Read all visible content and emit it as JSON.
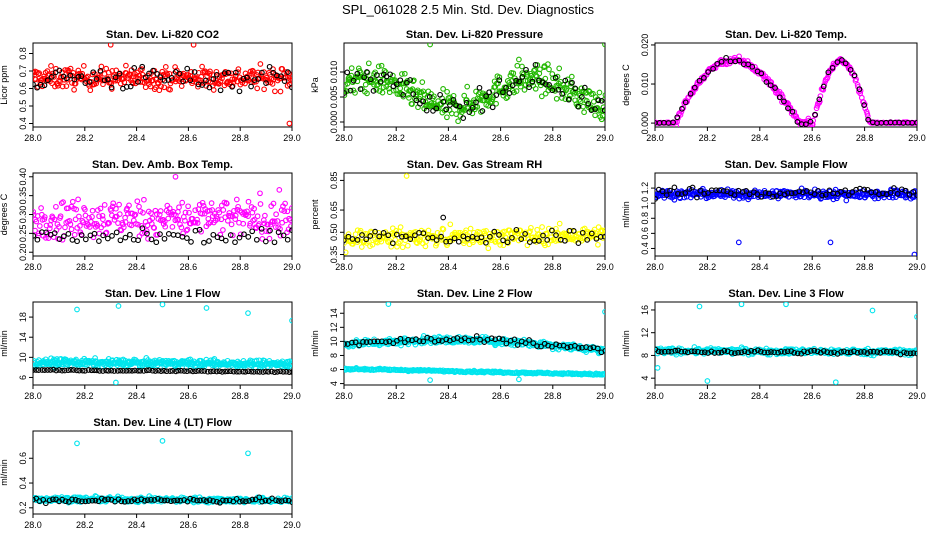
{
  "title": "SPL_061028  2.5 Min. Std. Dev. Diagnostics",
  "chart_data": [
    {
      "type": "scatter",
      "title": "Stan. Dev. Li-820 CO2",
      "ylabel": "Licor ppm",
      "xlim": [
        28.0,
        29.0
      ],
      "ylim": [
        0.38,
        0.86
      ],
      "xticks": [
        "28.0",
        "28.2",
        "28.4",
        "28.6",
        "28.8",
        "29.0"
      ],
      "yticks": [
        0.4,
        0.5,
        0.6,
        0.7,
        0.8
      ],
      "ytick_labels": [
        "0.4",
        "0.5",
        "0.6",
        "0.7",
        "0.8"
      ],
      "series": [
        {
          "name": "dense",
          "color": "#ff0000",
          "trend": [
            0.66,
            0.66
          ],
          "spread": 0.06,
          "n": 330
        },
        {
          "name": "black",
          "color": "#000000",
          "trend": [
            0.66,
            0.66
          ],
          "spread": 0.07,
          "n": 70
        }
      ],
      "outliers": [
        {
          "x": 28.62,
          "y": 0.85,
          "color": "#ff0000"
        },
        {
          "x": 28.3,
          "y": 0.85,
          "color": "#ff0000"
        },
        {
          "x": 28.99,
          "y": 0.4,
          "color": "#ff0000"
        }
      ]
    },
    {
      "type": "scatter",
      "title": "Stan. Dev. Li-820 Pressure",
      "ylabel": "kPa",
      "xlim": [
        28.0,
        29.0
      ],
      "ylim": [
        -0.001,
        0.0158
      ],
      "xticks": [
        "28.0",
        "28.2",
        "28.4",
        "28.6",
        "28.8",
        "29.0"
      ],
      "yticks": [
        0.0,
        0.005,
        0.01
      ],
      "ytick_labels": [
        "0.000",
        "0.005",
        "0.010"
      ],
      "series": [
        {
          "name": "dense",
          "color": "#22b800",
          "shape": "wave2",
          "spread": 0.0028,
          "n": 380
        },
        {
          "name": "black",
          "color": "#000000",
          "shape": "wave2",
          "spread": 0.0025,
          "n": 80
        }
      ],
      "outliers": [
        {
          "x": 28.33,
          "y": 0.0155,
          "color": "#22b800"
        },
        {
          "x": 29.0,
          "y": 0.0155,
          "color": "#22b800"
        },
        {
          "x": 28.67,
          "y": 0.0125,
          "color": "#22b800"
        }
      ]
    },
    {
      "type": "scatter",
      "title": "Stan. Dev. Li-820 Temp.",
      "ylabel": "degrees C",
      "xlim": [
        28.0,
        29.0
      ],
      "ylim": [
        -0.001,
        0.0205
      ],
      "xticks": [
        "28.0",
        "28.2",
        "28.4",
        "28.6",
        "28.8",
        "29.0"
      ],
      "yticks": [
        0.0,
        0.01,
        0.02
      ],
      "ytick_labels": [
        "0.000",
        "0.010",
        "0.020"
      ],
      "series": [
        {
          "name": "dense",
          "color": "#ff00ff",
          "shape": "temp",
          "spread": 0.0009,
          "n": 300
        },
        {
          "name": "black",
          "color": "#000000",
          "shape": "temp",
          "spread": 0.0008,
          "n": 60
        }
      ],
      "outliers": []
    },
    {
      "type": "scatter",
      "title": "Stan. Dev. Amb. Box Temp.",
      "ylabel": "degrees C",
      "xlim": [
        28.0,
        29.0
      ],
      "ylim": [
        0.19,
        0.41
      ],
      "xticks": [
        "28.0",
        "28.2",
        "28.4",
        "28.6",
        "28.8",
        "29.0"
      ],
      "yticks": [
        0.2,
        0.25,
        0.3,
        0.35,
        0.4
      ],
      "ytick_labels": [
        "0.20",
        "0.25",
        "0.30",
        "0.35",
        "0.40"
      ],
      "series": [
        {
          "name": "dense",
          "color": "#ff00ff",
          "trend": [
            0.29,
            0.29
          ],
          "spread": 0.05,
          "n": 300
        },
        {
          "name": "black",
          "color": "#000000",
          "trend": [
            0.24,
            0.24
          ],
          "spread": 0.02,
          "n": 60
        }
      ],
      "outliers": [
        {
          "x": 28.55,
          "y": 0.4,
          "color": "#ff00ff"
        }
      ]
    },
    {
      "type": "scatter",
      "title": "Stan. Dev. Gas Stream RH",
      "ylabel": "percent",
      "xlim": [
        28.0,
        29.0
      ],
      "ylim": [
        0.34,
        0.9
      ],
      "xticks": [
        "28.0",
        "28.2",
        "28.4",
        "28.6",
        "28.8",
        "29.0"
      ],
      "yticks": [
        0.35,
        0.5,
        0.65,
        0.85
      ],
      "ytick_labels": [
        "0.35",
        "0.50",
        "0.65",
        "0.85"
      ],
      "series": [
        {
          "name": "dense",
          "color": "#ffff00",
          "trend": [
            0.46,
            0.48
          ],
          "spread": 0.06,
          "n": 300
        },
        {
          "name": "black",
          "color": "#000000",
          "trend": [
            0.46,
            0.48
          ],
          "spread": 0.05,
          "n": 60
        }
      ],
      "outliers": [
        {
          "x": 28.24,
          "y": 0.88,
          "color": "#ffff00"
        },
        {
          "x": 28.38,
          "y": 0.6,
          "color": "#000000"
        }
      ]
    },
    {
      "type": "scatter",
      "title": "Stan. Dev. Sample Flow",
      "ylabel": "ml/min",
      "xlim": [
        28.0,
        29.0
      ],
      "ylim": [
        0.3,
        1.4
      ],
      "xticks": [
        "28.0",
        "28.2",
        "28.4",
        "28.6",
        "28.8",
        "29.0"
      ],
      "yticks": [
        0.4,
        0.6,
        0.8,
        1.0,
        1.2
      ],
      "ytick_labels": [
        "0.4",
        "0.6",
        "0.8",
        "1.0",
        "1.2"
      ],
      "series": [
        {
          "name": "dense",
          "color": "#0000ff",
          "trend": [
            1.12,
            1.12
          ],
          "spread": 0.06,
          "n": 330
        },
        {
          "name": "black",
          "color": "#000000",
          "trend": [
            1.14,
            1.14
          ],
          "spread": 0.07,
          "n": 70
        }
      ],
      "outliers": [
        {
          "x": 28.32,
          "y": 0.48,
          "color": "#0000ff"
        },
        {
          "x": 28.67,
          "y": 0.48,
          "color": "#0000ff"
        },
        {
          "x": 28.99,
          "y": 0.32,
          "color": "#0000ff"
        }
      ]
    },
    {
      "type": "scatter",
      "title": "Stan. Dev. Line 1 Flow",
      "ylabel": "ml/min",
      "xlim": [
        28.0,
        29.0
      ],
      "ylim": [
        4.5,
        21
      ],
      "xticks": [
        "28.0",
        "28.2",
        "28.4",
        "28.6",
        "28.8",
        "29.0"
      ],
      "yticks": [
        6,
        10,
        14,
        18
      ],
      "ytick_labels": [
        "6",
        "10",
        "14",
        "18"
      ],
      "series": [
        {
          "name": "dense",
          "color": "#00e5ee",
          "trend": [
            9.0,
            8.7
          ],
          "spread": 0.7,
          "n": 420
        },
        {
          "name": "black",
          "color": "#000000",
          "trend": [
            7.5,
            7.1
          ],
          "spread": 0.1,
          "n": 90,
          "band": true
        }
      ],
      "outliers": [
        {
          "x": 28.17,
          "y": 19.5,
          "color": "#00e5ee"
        },
        {
          "x": 28.33,
          "y": 20.2,
          "color": "#00e5ee"
        },
        {
          "x": 28.5,
          "y": 20.5,
          "color": "#00e5ee"
        },
        {
          "x": 28.67,
          "y": 19.8,
          "color": "#00e5ee"
        },
        {
          "x": 28.83,
          "y": 18.8,
          "color": "#00e5ee"
        },
        {
          "x": 29.0,
          "y": 17.3,
          "color": "#00e5ee"
        },
        {
          "x": 28.32,
          "y": 5.0,
          "color": "#00e5ee"
        }
      ]
    },
    {
      "type": "scatter",
      "title": "Stan. Dev. Line 2 Flow",
      "ylabel": "ml/min",
      "xlim": [
        28.0,
        29.0
      ],
      "ylim": [
        3.8,
        15.6
      ],
      "xticks": [
        "28.0",
        "28.2",
        "28.4",
        "28.6",
        "28.8",
        "29.0"
      ],
      "yticks": [
        4,
        6,
        8,
        10,
        12,
        14
      ],
      "ytick_labels": [
        "4",
        "6",
        "8",
        "10",
        "12",
        "14"
      ],
      "series": [
        {
          "name": "dense",
          "color": "#00e5ee",
          "shape": "arch",
          "spread": 0.5,
          "n": 360
        },
        {
          "name": "band",
          "color": "#00e5ee",
          "trend": [
            6.1,
            5.3
          ],
          "spread": 0.12,
          "n": 260,
          "band": true
        },
        {
          "name": "black",
          "color": "#000000",
          "shape": "arch",
          "spread": 0.5,
          "n": 70
        }
      ],
      "outliers": [
        {
          "x": 28.17,
          "y": 15.3,
          "color": "#00e5ee"
        },
        {
          "x": 29.0,
          "y": 14.2,
          "color": "#00e5ee"
        },
        {
          "x": 28.33,
          "y": 4.5,
          "color": "#00e5ee"
        },
        {
          "x": 28.67,
          "y": 4.6,
          "color": "#00e5ee"
        }
      ]
    },
    {
      "type": "scatter",
      "title": "Stan. Dev. Line 3 Flow",
      "ylabel": "ml/min",
      "xlim": [
        28.0,
        29.0
      ],
      "ylim": [
        2.8,
        17.4
      ],
      "xticks": [
        "28.0",
        "28.2",
        "28.4",
        "28.6",
        "28.8",
        "29.0"
      ],
      "yticks": [
        4,
        8,
        12,
        16
      ],
      "ytick_labels": [
        "4",
        "8",
        "12",
        "16"
      ],
      "series": [
        {
          "name": "dense",
          "color": "#00e5ee",
          "trend": [
            8.8,
            8.6
          ],
          "spread": 0.5,
          "n": 380
        },
        {
          "name": "black",
          "color": "#000000",
          "trend": [
            8.7,
            8.5
          ],
          "spread": 0.3,
          "n": 80
        }
      ],
      "outliers": [
        {
          "x": 28.17,
          "y": 16.6,
          "color": "#00e5ee"
        },
        {
          "x": 28.33,
          "y": 17.0,
          "color": "#00e5ee"
        },
        {
          "x": 28.5,
          "y": 17.0,
          "color": "#00e5ee"
        },
        {
          "x": 28.83,
          "y": 15.9,
          "color": "#00e5ee"
        },
        {
          "x": 29.0,
          "y": 14.8,
          "color": "#00e5ee"
        },
        {
          "x": 28.2,
          "y": 3.5,
          "color": "#00e5ee"
        },
        {
          "x": 28.69,
          "y": 3.3,
          "color": "#00e5ee"
        },
        {
          "x": 28.01,
          "y": 5.8,
          "color": "#00e5ee"
        }
      ]
    },
    {
      "type": "scatter",
      "title": "Stan. Dev. Line 4 (LT) Flow",
      "ylabel": "ml/min",
      "xlim": [
        28.0,
        29.0
      ],
      "ylim": [
        0.15,
        0.82
      ],
      "xticks": [
        "28.0",
        "28.2",
        "28.4",
        "28.6",
        "28.8",
        "29.0"
      ],
      "yticks": [
        0.2,
        0.4,
        0.6
      ],
      "ytick_labels": [
        "0.2",
        "0.4",
        "0.6"
      ],
      "series": [
        {
          "name": "dense",
          "color": "#00e5ee",
          "trend": [
            0.27,
            0.26
          ],
          "spread": 0.02,
          "n": 380
        },
        {
          "name": "black",
          "color": "#000000",
          "trend": [
            0.26,
            0.26
          ],
          "spread": 0.02,
          "n": 80
        }
      ],
      "outliers": [
        {
          "x": 28.17,
          "y": 0.72,
          "color": "#00e5ee"
        },
        {
          "x": 28.5,
          "y": 0.74,
          "color": "#00e5ee"
        },
        {
          "x": 28.83,
          "y": 0.64,
          "color": "#00e5ee"
        }
      ]
    }
  ]
}
